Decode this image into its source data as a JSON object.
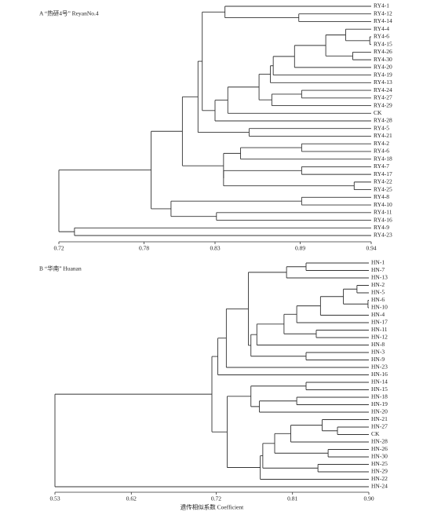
{
  "chart_data": [
    {
      "type": "dendrogram",
      "title": "A “热研4号” ReyanNo.4",
      "xlim": [
        0.72,
        0.94
      ],
      "xticks": [
        0.72,
        0.78,
        0.83,
        0.89,
        0.94
      ],
      "tree": {
        "height": 0.72,
        "children": [
          {
            "height": 0.785,
            "children": [
              {
                "height": 0.807,
                "children": [
                  {
                    "height": 0.818,
                    "children": [
                      {
                        "height": 0.821,
                        "children": [
                          {
                            "height": 0.837,
                            "children": [
                              "RY4-1",
                              {
                                "height": 0.889,
                                "children": [
                                  "RY4-12",
                                  "RY4-14"
                                ]
                              }
                            ]
                          },
                          {
                            "height": 0.83,
                            "children": [
                              {
                                "height": 0.839,
                                "children": [
                                  {
                                    "height": 0.861,
                                    "children": [
                                      {
                                        "height": 0.869,
                                        "children": [
                                          {
                                            "height": 0.871,
                                            "children": [
                                              {
                                                "height": 0.886,
                                                "children": [
                                                  {
                                                    "height": 0.908,
                                                    "children": [
                                                      {
                                                        "height": 0.922,
                                                        "children": [
                                                          "RY4-4",
                                                          {
                                                            "height": 0.939,
                                                            "children": [
                                                              "RY4-6",
                                                              "RY4-15"
                                                            ]
                                                          }
                                                        ]
                                                      },
                                                      {
                                                        "height": 0.927,
                                                        "children": [
                                                          "RY4-26",
                                                          "RY4-30"
                                                        ]
                                                      }
                                                    ]
                                                  },
                                                  "RY4-20"
                                                ]
                                              },
                                              "RY4-19"
                                            ]
                                          },
                                          "RY4-13"
                                        ]
                                      },
                                      {
                                        "height": 0.87,
                                        "children": [
                                          {
                                            "height": 0.891,
                                            "children": [
                                              "RY4-24",
                                              "RY4-27"
                                            ]
                                          },
                                          "RY4-29"
                                        ]
                                      }
                                    ]
                                  },
                                  "CK"
                                ]
                              },
                              "RY4-28"
                            ]
                          }
                        ]
                      },
                      {
                        "height": 0.854,
                        "children": [
                          "RY4-5",
                          "RY4-21"
                        ]
                      }
                    ]
                  },
                  {
                    "height": 0.836,
                    "children": [
                      {
                        "height": 0.848,
                        "children": [
                          {
                            "height": 0.891,
                            "children": [
                              "RY4-2",
                              "RY4-6"
                            ]
                          },
                          "RY4-18"
                        ]
                      },
                      {
                        "height": 0.836,
                        "children": [
                          {
                            "height": 0.891,
                            "children": [
                              "RY4-7",
                              "RY4-17"
                            ]
                          },
                          {
                            "height": 0.928,
                            "children": [
                              "RY4-22",
                              "RY4-25"
                            ]
                          }
                        ]
                      }
                    ]
                  }
                ]
              },
              {
                "height": 0.799,
                "children": [
                  {
                    "height": 0.891,
                    "children": [
                      "RY4-8",
                      "RY4-10"
                    ]
                  },
                  {
                    "height": 0.831,
                    "children": [
                      "RY4-11",
                      "RY4-16"
                    ]
                  }
                ]
              }
            ]
          },
          {
            "height": 0.731,
            "children": [
              "RY4-9",
              "RY4-23"
            ]
          }
        ]
      }
    },
    {
      "type": "dendrogram",
      "title": "B “华南” Huanan",
      "xlabel": "遗传相似系数 Coefficient",
      "xlim": [
        0.53,
        0.9
      ],
      "xticks": [
        0.53,
        0.62,
        0.72,
        0.81,
        {
          "value": 0.9,
          "label": "0.90"
        }
      ],
      "tree": {
        "height": 0.53,
        "children": [
          {
            "height": 0.715,
            "children": [
              {
                "height": 0.722,
                "children": [
                  {
                    "height": 0.732,
                    "children": [
                      {
                        "height": 0.758,
                        "children": [
                          {
                            "height": 0.803,
                            "children": [
                              {
                                "height": 0.826,
                                "children": [
                                  "HN-1",
                                  "HN-7"
                                ]
                              },
                              "HN-13"
                            ]
                          },
                          {
                            "height": 0.761,
                            "children": [
                              {
                                "height": 0.768,
                                "children": [
                                  {
                                    "height": 0.8,
                                    "children": [
                                      {
                                        "height": 0.815,
                                        "children": [
                                          {
                                            "height": 0.843,
                                            "children": [
                                              {
                                                "height": 0.87,
                                                "children": [
                                                  {
                                                    "height": 0.886,
                                                    "children": [
                                                      "HN-2",
                                                      "HN-5"
                                                    ]
                                                  },
                                                  {
                                                    "height": 0.899,
                                                    "children": [
                                                      "HN-6",
                                                      "HN-10"
                                                    ]
                                                  }
                                                ]
                                              },
                                              "HN-4"
                                            ]
                                          },
                                          "HN-17"
                                        ]
                                      },
                                      {
                                        "height": 0.838,
                                        "children": [
                                          "HN-11",
                                          "HN-12"
                                        ]
                                      }
                                    ]
                                  },
                                  "HN-8"
                                ]
                              },
                              {
                                "height": 0.826,
                                "children": [
                                  "HN-3",
                                  "HN-9"
                                ]
                              }
                            ]
                          }
                        ]
                      },
                      "HN-23"
                    ]
                  },
                  "HN-16"
                ]
              },
              {
                "height": 0.733,
                "children": [
                  {
                    "height": 0.761,
                    "children": [
                      {
                        "height": 0.826,
                        "children": [
                          "HN-14",
                          "HN-15"
                        ]
                      },
                      {
                        "height": 0.771,
                        "children": [
                          {
                            "height": 0.815,
                            "children": [
                              "HN-18",
                              "HN-19"
                            ]
                          },
                          "HN-20"
                        ]
                      }
                    ]
                  },
                  {
                    "height": 0.772,
                    "children": [
                      {
                        "height": 0.775,
                        "children": [
                          {
                            "height": 0.789,
                            "children": [
                              {
                                "height": 0.808,
                                "children": [
                                  {
                                    "height": 0.845,
                                    "children": [
                                      "HN-21",
                                      {
                                        "height": 0.863,
                                        "children": [
                                          "HN-27",
                                          "CK"
                                        ]
                                      }
                                    ]
                                  },
                                  "HN-28"
                                ]
                              },
                              {
                                "height": 0.852,
                                "children": [
                                  "HN-26",
                                  "HN-30"
                                ]
                              }
                            ]
                          },
                          {
                            "height": 0.84,
                            "children": [
                              "HN-25",
                              "HN-29"
                            ]
                          }
                        ]
                      },
                      "HN-22"
                    ]
                  }
                ]
              }
            ]
          },
          "HN-24"
        ]
      }
    }
  ]
}
